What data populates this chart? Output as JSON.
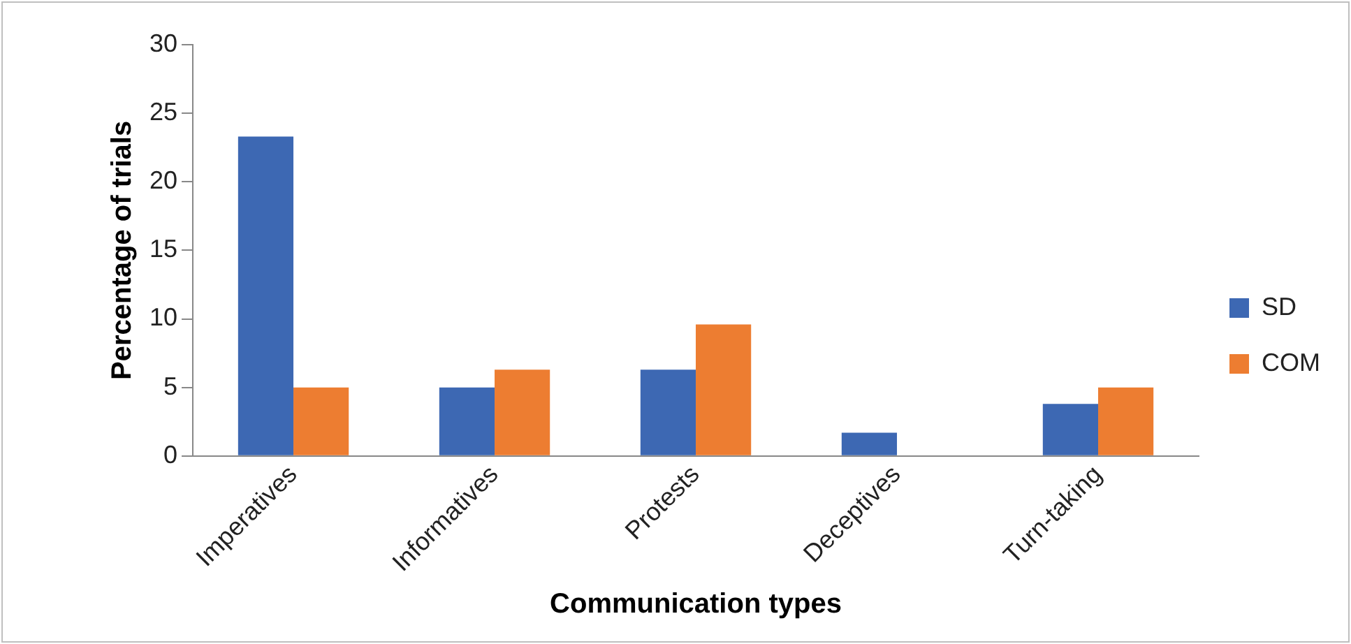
{
  "chart_data": {
    "type": "bar",
    "xlabel": "Communication types",
    "ylabel": "Percentage of trials",
    "categories": [
      "Imperatives",
      "Informatives",
      "Protests",
      "Deceptives",
      "Turn-taking"
    ],
    "series": [
      {
        "name": "SD",
        "color": "#3d68b3",
        "values": [
          23.3,
          5,
          6.3,
          1.7,
          3.8
        ]
      },
      {
        "name": "COM",
        "color": "#ed7d31",
        "values": [
          5,
          6.3,
          9.6,
          0,
          5
        ]
      }
    ],
    "ylim": [
      0,
      30
    ],
    "yticks": [
      0,
      5,
      10,
      15,
      20,
      25,
      30
    ],
    "grid": false,
    "legend": "right"
  }
}
